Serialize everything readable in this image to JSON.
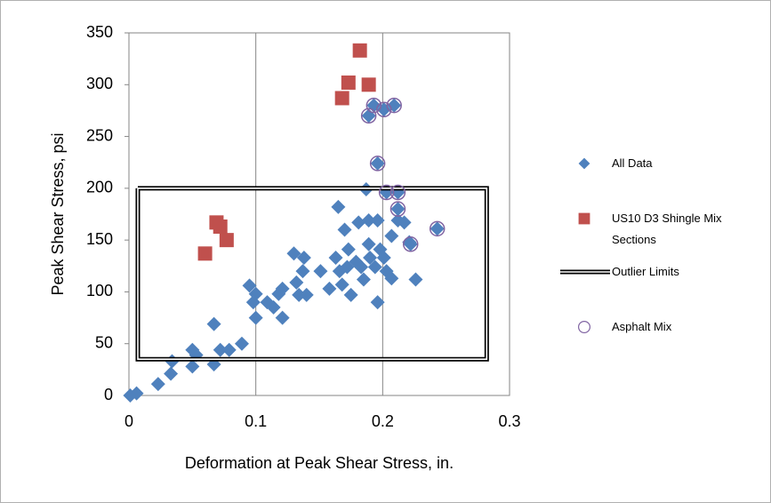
{
  "chart_data": {
    "type": "scatter",
    "x_label": "Deformation at Peak Shear Stress, in.",
    "y_label": "Peak Shear Stress, psi",
    "xlim": [
      0,
      0.3
    ],
    "ylim": [
      0,
      350
    ],
    "xticks": [
      0,
      0.1,
      0.2,
      0.3
    ],
    "yticks": [
      0,
      50,
      100,
      150,
      200,
      250,
      300,
      350
    ],
    "grid": "x",
    "legend": "right",
    "series": [
      {
        "name": "All Data",
        "color": "#4f81bd",
        "marker": "diamond",
        "x": [
          0.001,
          0.006,
          0.023,
          0.033,
          0.034,
          0.05,
          0.05,
          0.053,
          0.067,
          0.067,
          0.072,
          0.079,
          0.089,
          0.095,
          0.1,
          0.1,
          0.098,
          0.109,
          0.114,
          0.118,
          0.121,
          0.121,
          0.13,
          0.132,
          0.134,
          0.138,
          0.137,
          0.14,
          0.151,
          0.158,
          0.165,
          0.163,
          0.166,
          0.168,
          0.17,
          0.172,
          0.173,
          0.175,
          0.179,
          0.181,
          0.183,
          0.185,
          0.187,
          0.189,
          0.189,
          0.19,
          0.194,
          0.196,
          0.196,
          0.198,
          0.201,
          0.203,
          0.207,
          0.207,
          0.212,
          0.217,
          0.221,
          0.226,
          0.189,
          0.193,
          0.201,
          0.209,
          0.196,
          0.203,
          0.212,
          0.212,
          0.222,
          0.243
        ],
        "values": [
          0,
          2,
          11,
          21,
          33,
          28,
          44,
          39,
          30,
          69,
          44,
          44,
          50,
          106,
          75,
          98,
          90,
          90,
          85,
          98,
          75,
          103,
          137,
          109,
          97,
          133,
          120,
          97,
          120,
          103,
          182,
          133,
          120,
          107,
          160,
          124,
          141,
          97,
          129,
          167,
          124,
          112,
          199,
          169,
          146,
          133,
          124,
          169,
          90,
          141,
          133,
          120,
          113,
          154,
          169,
          167,
          148,
          112,
          270,
          280,
          276,
          280,
          224,
          196,
          196,
          180,
          146,
          161
        ]
      },
      {
        "name": "US10 D3 Shingle Mix Sections",
        "color": "#c0504d",
        "marker": "square",
        "x": [
          0.182,
          0.173,
          0.189,
          0.168,
          0.069,
          0.072,
          0.077,
          0.06
        ],
        "values": [
          333,
          302,
          300,
          287,
          167,
          163,
          150,
          137
        ]
      },
      {
        "name": "Outlier Limits",
        "color": "#000000",
        "marker": "double-line",
        "x": [
          0.007,
          0.282,
          0.282,
          0.007,
          0.007
        ],
        "values": [
          200,
          200,
          35,
          35,
          200
        ]
      },
      {
        "name": "Asphalt Mix",
        "color": "#8064a2",
        "marker": "circle",
        "x": [
          0.189,
          0.193,
          0.201,
          0.209,
          0.196,
          0.203,
          0.212,
          0.212,
          0.222,
          0.243
        ],
        "values": [
          270,
          280,
          276,
          280,
          224,
          196,
          196,
          180,
          146,
          161
        ]
      }
    ]
  }
}
